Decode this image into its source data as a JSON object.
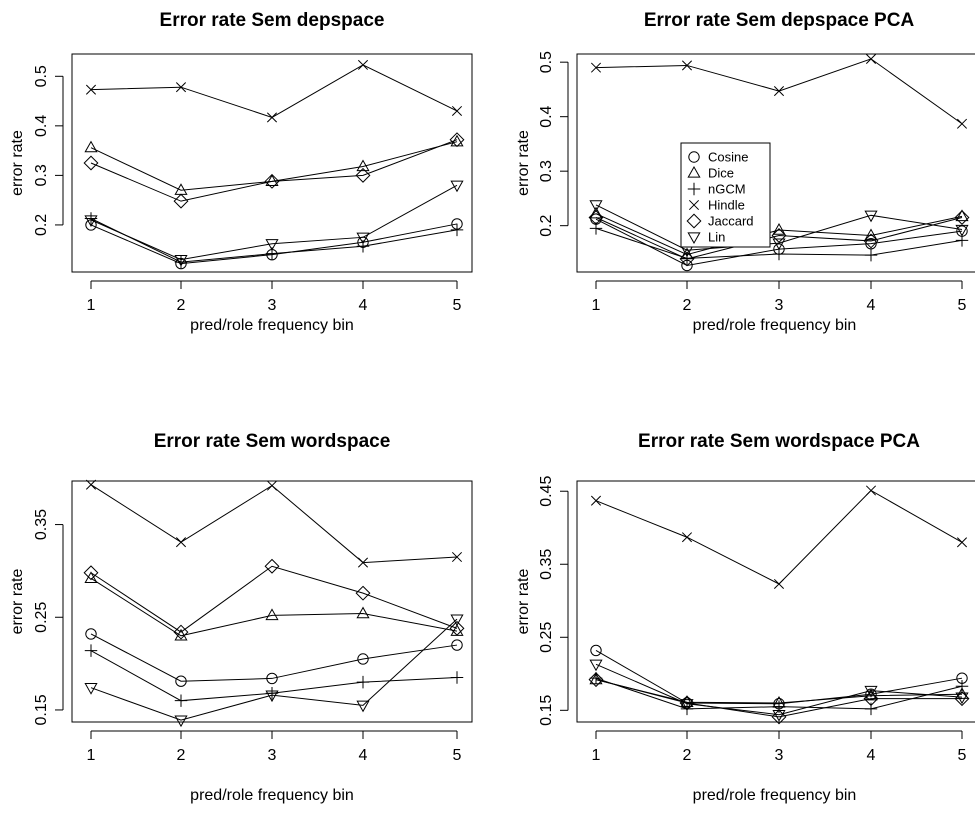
{
  "chart_data": [
    {
      "type": "line",
      "title": "Error rate Sem depspace",
      "xlabel": "pred/role frequency bin",
      "ylabel": "error rate",
      "x": [
        1,
        2,
        3,
        4,
        5
      ],
      "xticks": [
        "1",
        "2",
        "3",
        "4",
        "5"
      ],
      "ylim": [
        0.105,
        0.545
      ],
      "yticks": [
        0.2,
        0.3,
        0.4,
        0.5
      ],
      "ytick_labels": [
        "0.2",
        "0.3",
        "0.4",
        "0.5"
      ],
      "legend": false,
      "series": [
        {
          "name": "Cosine",
          "marker": "circle",
          "values": [
            0.2,
            0.122,
            0.14,
            0.165,
            0.202
          ]
        },
        {
          "name": "Dice",
          "marker": "triangle-up",
          "values": [
            0.356,
            0.27,
            0.288,
            0.318,
            0.368
          ]
        },
        {
          "name": "nGCM",
          "marker": "plus",
          "values": [
            0.213,
            0.125,
            0.142,
            0.157,
            0.19
          ]
        },
        {
          "name": "Hindle",
          "marker": "cross",
          "values": [
            0.473,
            0.478,
            0.417,
            0.523,
            0.43
          ]
        },
        {
          "name": "Jaccard",
          "marker": "diamond",
          "values": [
            0.325,
            0.248,
            0.288,
            0.3,
            0.372
          ]
        },
        {
          "name": "Lin",
          "marker": "triangle-down",
          "values": [
            0.21,
            0.13,
            0.162,
            0.175,
            0.28
          ]
        }
      ]
    },
    {
      "type": "line",
      "title": "Error rate Sem depspace PCA",
      "xlabel": "pred/role frequency bin",
      "ylabel": "error rate",
      "x": [
        1,
        2,
        3,
        4,
        5
      ],
      "xticks": [
        "1",
        "2",
        "3",
        "4",
        "5"
      ],
      "ylim": [
        0.115,
        0.515
      ],
      "yticks": [
        0.2,
        0.3,
        0.4,
        0.5
      ],
      "ytick_labels": [
        "0.2",
        "0.3",
        "0.4",
        "0.5"
      ],
      "legend": true,
      "legend_position": "upper-center",
      "series": [
        {
          "name": "Cosine",
          "marker": "circle",
          "values": [
            0.212,
            0.127,
            0.157,
            0.167,
            0.19
          ]
        },
        {
          "name": "Dice",
          "marker": "triangle-up",
          "values": [
            0.222,
            0.147,
            0.192,
            0.182,
            0.217
          ]
        },
        {
          "name": "nGCM",
          "marker": "plus",
          "values": [
            0.195,
            0.14,
            0.148,
            0.146,
            0.173
          ]
        },
        {
          "name": "Hindle",
          "marker": "cross",
          "values": [
            0.49,
            0.494,
            0.447,
            0.506,
            0.387
          ]
        },
        {
          "name": "Jaccard",
          "marker": "diamond",
          "values": [
            0.215,
            0.139,
            0.182,
            0.172,
            0.215
          ]
        },
        {
          "name": "Lin",
          "marker": "triangle-down",
          "values": [
            0.238,
            0.155,
            0.168,
            0.219,
            0.193
          ]
        }
      ]
    },
    {
      "type": "line",
      "title": "Error rate Sem wordspace",
      "xlabel": "pred/role frequency bin",
      "ylabel": "error rate",
      "x": [
        1,
        2,
        3,
        4,
        5
      ],
      "xticks": [
        "1",
        "2",
        "3",
        "4",
        "5"
      ],
      "ylim": [
        0.137,
        0.397
      ],
      "yticks": [
        0.15,
        0.25,
        0.35
      ],
      "ytick_labels": [
        "0.15",
        "0.25",
        "0.35"
      ],
      "legend": false,
      "series": [
        {
          "name": "Cosine",
          "marker": "circle",
          "values": [
            0.232,
            0.181,
            0.184,
            0.205,
            0.22
          ]
        },
        {
          "name": "Dice",
          "marker": "triangle-up",
          "values": [
            0.292,
            0.23,
            0.252,
            0.254,
            0.235
          ]
        },
        {
          "name": "nGCM",
          "marker": "plus",
          "values": [
            0.214,
            0.16,
            0.168,
            0.18,
            0.185
          ]
        },
        {
          "name": "Hindle",
          "marker": "cross",
          "values": [
            0.393,
            0.331,
            0.392,
            0.309,
            0.315
          ]
        },
        {
          "name": "Jaccard",
          "marker": "diamond",
          "values": [
            0.298,
            0.234,
            0.305,
            0.276,
            0.238
          ]
        },
        {
          "name": "Lin",
          "marker": "triangle-down",
          "values": [
            0.174,
            0.139,
            0.166,
            0.155,
            0.248
          ]
        }
      ]
    },
    {
      "type": "line",
      "title": "Error rate Sem wordspace PCA",
      "xlabel": "pred/role frequency bin",
      "ylabel": "error rate",
      "x": [
        1,
        2,
        3,
        4,
        5
      ],
      "xticks": [
        "1",
        "2",
        "3",
        "4",
        "5"
      ],
      "ylim": [
        0.134,
        0.464
      ],
      "yticks": [
        0.15,
        0.25,
        0.35,
        0.45
      ],
      "ytick_labels": [
        "0.15",
        "0.25",
        "0.35",
        "0.45"
      ],
      "legend": false,
      "series": [
        {
          "name": "Cosine",
          "marker": "circle",
          "values": [
            0.232,
            0.16,
            0.159,
            0.172,
            0.194
          ]
        },
        {
          "name": "Dice",
          "marker": "triangle-up",
          "values": [
            0.192,
            0.161,
            0.16,
            0.17,
            0.172
          ]
        },
        {
          "name": "nGCM",
          "marker": "plus",
          "values": [
            0.194,
            0.152,
            0.155,
            0.152,
            0.183
          ]
        },
        {
          "name": "Hindle",
          "marker": "cross",
          "values": [
            0.437,
            0.387,
            0.323,
            0.451,
            0.38
          ]
        },
        {
          "name": "Jaccard",
          "marker": "diamond",
          "values": [
            0.192,
            0.16,
            0.141,
            0.166,
            0.166
          ]
        },
        {
          "name": "Lin",
          "marker": "triangle-down",
          "values": [
            0.213,
            0.159,
            0.144,
            0.177,
            0.168
          ]
        }
      ]
    }
  ]
}
